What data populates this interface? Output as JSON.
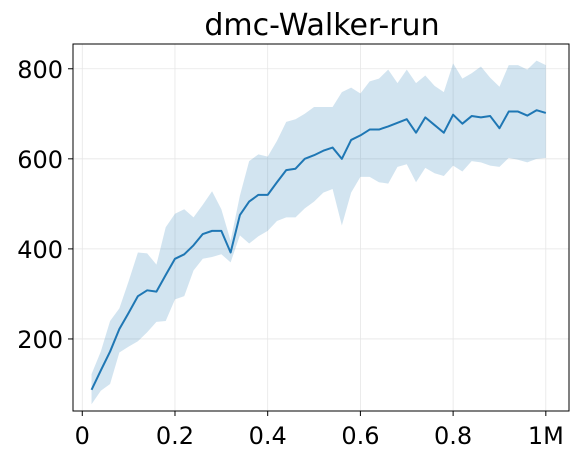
{
  "chart_data": {
    "type": "line",
    "title": "dmc-Walker-run",
    "xlabel": "",
    "ylabel": "",
    "xlim": [
      -0.02,
      1.05
    ],
    "ylim": [
      40,
      855
    ],
    "grid": true,
    "x_ticks": [
      {
        "value": 0,
        "label": "0"
      },
      {
        "value": 0.2,
        "label": "0.2"
      },
      {
        "value": 0.4,
        "label": "0.4"
      },
      {
        "value": 0.6,
        "label": "0.6"
      },
      {
        "value": 0.8,
        "label": "0.8"
      },
      {
        "value": 1.0,
        "label": "1M"
      }
    ],
    "y_ticks": [
      {
        "value": 200,
        "label": "200"
      },
      {
        "value": 400,
        "label": "400"
      },
      {
        "value": 600,
        "label": "600"
      },
      {
        "value": 800,
        "label": "800"
      }
    ],
    "colors": {
      "line": "#1f77b4",
      "band": "#1f77b4"
    },
    "series": [
      {
        "x": [
          0.02,
          0.04,
          0.06,
          0.08,
          0.1,
          0.12,
          0.14,
          0.16,
          0.18,
          0.2,
          0.22,
          0.24,
          0.26,
          0.28,
          0.3,
          0.32,
          0.34,
          0.36,
          0.38,
          0.4,
          0.42,
          0.44,
          0.46,
          0.48,
          0.5,
          0.52,
          0.54,
          0.56,
          0.58,
          0.6,
          0.62,
          0.64,
          0.66,
          0.68,
          0.7,
          0.72,
          0.74,
          0.76,
          0.78,
          0.8,
          0.82,
          0.84,
          0.86,
          0.88,
          0.9,
          0.92,
          0.94,
          0.96,
          0.98,
          1.0
        ],
        "y": [
          87,
          130,
          172,
          222,
          258,
          295,
          308,
          305,
          342,
          378,
          388,
          408,
          433,
          440,
          440,
          392,
          475,
          505,
          520,
          520,
          548,
          575,
          578,
          600,
          608,
          618,
          625,
          600,
          642,
          652,
          665,
          665,
          672,
          680,
          688,
          658,
          692,
          675,
          658,
          698,
          678,
          695,
          692,
          695,
          668,
          705,
          705,
          696,
          708,
          702
        ],
        "lower": [
          55,
          85,
          100,
          170,
          183,
          195,
          215,
          238,
          240,
          288,
          295,
          352,
          378,
          382,
          388,
          370,
          430,
          412,
          428,
          440,
          462,
          470,
          470,
          490,
          505,
          525,
          533,
          452,
          525,
          560,
          560,
          548,
          545,
          582,
          588,
          548,
          580,
          568,
          562,
          585,
          572,
          595,
          592,
          585,
          582,
          602,
          598,
          592,
          600,
          602
        ],
        "upper": [
          122,
          172,
          240,
          268,
          328,
          392,
          390,
          365,
          448,
          478,
          488,
          470,
          498,
          528,
          488,
          418,
          518,
          595,
          610,
          605,
          640,
          682,
          688,
          700,
          715,
          715,
          715,
          748,
          758,
          745,
          772,
          778,
          798,
          768,
          798,
          768,
          785,
          762,
          748,
          812,
          778,
          790,
          805,
          780,
          760,
          808,
          808,
          798,
          818,
          808
        ]
      }
    ]
  }
}
